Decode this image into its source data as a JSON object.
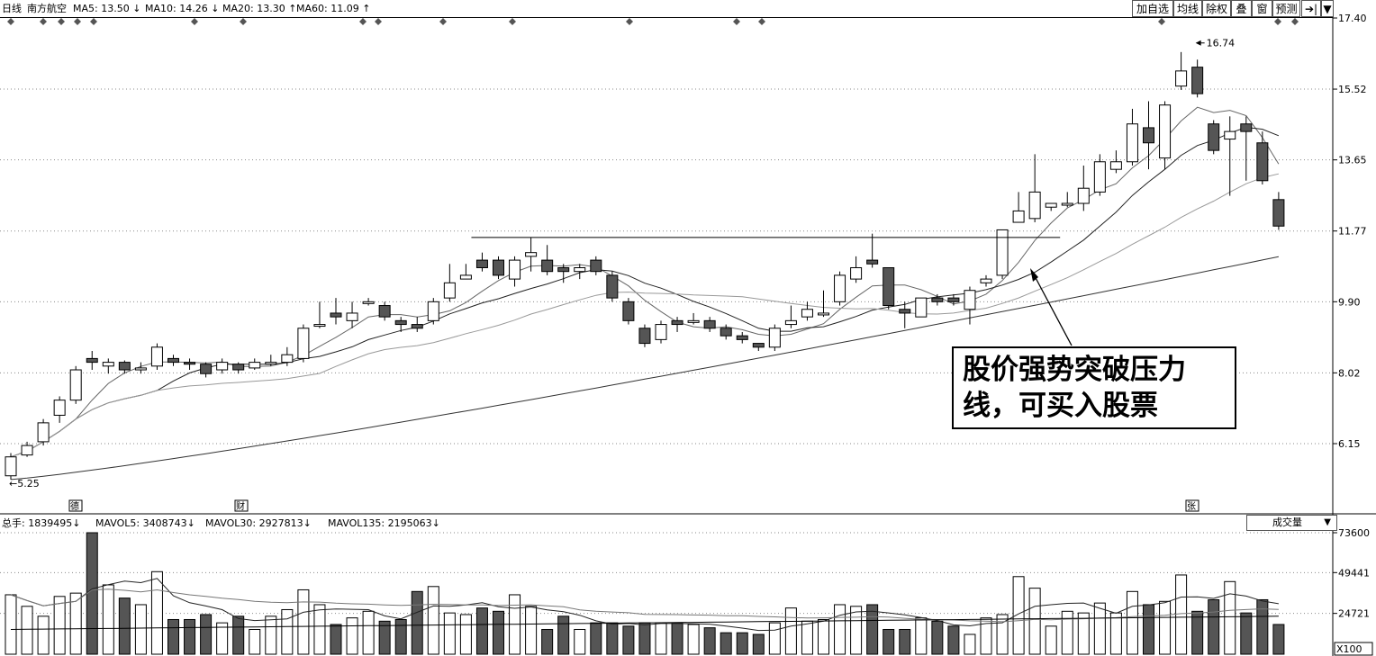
{
  "header": {
    "period": "日线",
    "stock": "南方航空",
    "ma": [
      {
        "label": "MA5: 13.50",
        "arrow": "↓"
      },
      {
        "label": "MA10: 14.26",
        "arrow": "↓"
      },
      {
        "label": "MA20: 13.30",
        "arrow": "↑"
      },
      {
        "label": "MA60: 11.09",
        "arrow": "↑"
      }
    ]
  },
  "toolbar": [
    "加自选",
    "均线",
    "除权",
    "叠",
    "窗",
    "预测",
    "➔|",
    "▼"
  ],
  "price_axis": [
    "17.40",
    "15.52",
    "13.65",
    "11.77",
    "9.90",
    "8.02",
    "6.15"
  ],
  "volume_axis": [
    "73600",
    "49441",
    "24721"
  ],
  "volume_unit": "X100",
  "volume_header": [
    {
      "label": "总手: 1839495",
      "arrow": "↓"
    },
    {
      "label": "MAVOL5: 3408743",
      "arrow": "↓"
    },
    {
      "label": "MAVOL30: 2927813",
      "arrow": "↓"
    },
    {
      "label": "MAVOL135: 2195063",
      "arrow": "↓"
    }
  ],
  "volume_select": "成交量",
  "markers": {
    "low": "5.25",
    "high": "16.74",
    "bottom_tags": [
      "德",
      "财",
      "张"
    ]
  },
  "annotation": "股价强势突破压力线，可买入股票",
  "colors": {
    "up": "#ffffff",
    "down": "#555555",
    "grid": "#8a8a8a",
    "text": "#000000"
  },
  "chart_data": {
    "type": "candlestick",
    "ylim": [
      4.5,
      17.6
    ],
    "candles": [
      [
        5.3,
        5.8,
        5.2,
        5.9
      ],
      [
        5.85,
        6.1,
        5.8,
        6.2
      ],
      [
        6.2,
        6.7,
        6.1,
        6.8
      ],
      [
        6.9,
        7.3,
        6.7,
        7.4
      ],
      [
        7.3,
        8.1,
        7.2,
        8.2
      ],
      [
        8.4,
        8.3,
        8.1,
        8.6
      ],
      [
        8.2,
        8.3,
        8.0,
        8.4
      ],
      [
        8.3,
        8.1,
        8.0,
        8.35
      ],
      [
        8.1,
        8.15,
        8.0,
        8.3
      ],
      [
        8.2,
        8.7,
        8.1,
        8.8
      ],
      [
        8.4,
        8.3,
        8.2,
        8.5
      ],
      [
        8.3,
        8.25,
        8.1,
        8.4
      ],
      [
        8.25,
        8.0,
        7.9,
        8.3
      ],
      [
        8.1,
        8.3,
        8.0,
        8.4
      ],
      [
        8.25,
        8.1,
        8.0,
        8.3
      ],
      [
        8.15,
        8.3,
        8.1,
        8.4
      ],
      [
        8.3,
        8.3,
        8.2,
        8.5
      ],
      [
        8.3,
        8.5,
        8.2,
        8.7
      ],
      [
        8.4,
        9.2,
        8.3,
        9.3
      ],
      [
        9.3,
        9.3,
        9.2,
        9.9
      ],
      [
        9.6,
        9.5,
        9.3,
        10.0
      ],
      [
        9.4,
        9.6,
        9.2,
        9.9
      ],
      [
        9.9,
        9.9,
        9.8,
        10.0
      ],
      [
        9.8,
        9.5,
        9.4,
        9.9
      ],
      [
        9.4,
        9.3,
        9.1,
        9.5
      ],
      [
        9.3,
        9.2,
        9.1,
        9.5
      ],
      [
        9.4,
        9.9,
        9.3,
        10.0
      ],
      [
        10.0,
        10.4,
        9.9,
        10.9
      ],
      [
        10.5,
        10.6,
        10.5,
        10.9
      ],
      [
        11.0,
        10.8,
        10.7,
        11.2
      ],
      [
        11.0,
        10.6,
        10.5,
        11.1
      ],
      [
        10.5,
        11.0,
        10.3,
        11.1
      ],
      [
        11.1,
        11.2,
        10.7,
        11.6
      ],
      [
        11.0,
        10.7,
        10.6,
        11.4
      ],
      [
        10.8,
        10.7,
        10.4,
        10.9
      ],
      [
        10.7,
        10.8,
        10.5,
        10.9
      ],
      [
        11.0,
        10.7,
        10.6,
        11.1
      ],
      [
        10.6,
        10.0,
        9.9,
        10.7
      ],
      [
        9.9,
        9.4,
        9.3,
        10.0
      ],
      [
        9.2,
        8.8,
        8.7,
        9.3
      ],
      [
        8.9,
        9.3,
        8.8,
        9.4
      ],
      [
        9.4,
        9.3,
        9.1,
        9.5
      ],
      [
        9.4,
        9.4,
        9.3,
        9.6
      ],
      [
        9.4,
        9.2,
        9.1,
        9.5
      ],
      [
        9.2,
        9.0,
        8.9,
        9.3
      ],
      [
        9.0,
        8.9,
        8.8,
        9.1
      ],
      [
        8.8,
        8.7,
        8.6,
        8.8
      ],
      [
        8.7,
        9.2,
        8.6,
        9.3
      ],
      [
        9.3,
        9.4,
        9.2,
        9.8
      ],
      [
        9.5,
        9.7,
        9.4,
        9.9
      ],
      [
        9.6,
        9.6,
        9.5,
        10.2
      ],
      [
        9.9,
        10.6,
        9.8,
        10.7
      ],
      [
        10.5,
        10.8,
        10.4,
        11.1
      ],
      [
        11.0,
        10.9,
        10.8,
        11.7
      ],
      [
        10.8,
        9.8,
        9.7,
        10.8
      ],
      [
        9.7,
        9.6,
        9.2,
        9.9
      ],
      [
        9.5,
        10.0,
        9.5,
        10.0
      ],
      [
        10.0,
        9.9,
        9.8,
        10.1
      ],
      [
        10.0,
        9.9,
        9.8,
        10.1
      ],
      [
        9.7,
        10.2,
        9.3,
        10.3
      ],
      [
        10.4,
        10.5,
        10.3,
        10.6
      ],
      [
        10.6,
        11.8,
        10.5,
        11.8
      ],
      [
        12.0,
        12.3,
        12.0,
        12.8
      ],
      [
        12.1,
        12.8,
        12.0,
        13.8
      ],
      [
        12.4,
        12.5,
        12.3,
        12.5
      ],
      [
        12.5,
        12.5,
        12.4,
        12.8
      ],
      [
        12.5,
        12.9,
        12.3,
        13.5
      ],
      [
        12.8,
        13.6,
        12.7,
        13.8
      ],
      [
        13.4,
        13.6,
        13.3,
        13.9
      ],
      [
        13.6,
        14.6,
        13.5,
        15.0
      ],
      [
        14.5,
        14.1,
        13.4,
        15.2
      ],
      [
        13.7,
        15.1,
        13.4,
        15.2
      ],
      [
        15.6,
        16.0,
        15.5,
        16.5
      ],
      [
        16.1,
        15.4,
        15.3,
        16.3
      ],
      [
        14.6,
        13.9,
        13.8,
        14.7
      ],
      [
        14.2,
        14.4,
        12.7,
        14.8
      ],
      [
        14.6,
        14.4,
        13.1,
        14.8
      ],
      [
        14.1,
        13.1,
        13.0,
        14.4
      ],
      [
        12.6,
        11.9,
        11.8,
        12.8
      ]
    ],
    "volumes": [
      36000,
      29000,
      23000,
      35000,
      37000,
      73600,
      42000,
      34000,
      30000,
      50000,
      21000,
      21000,
      24000,
      19000,
      23000,
      15000,
      23000,
      27000,
      39000,
      30000,
      18000,
      22000,
      26000,
      20000,
      21000,
      38000,
      41000,
      25000,
      24000,
      28000,
      26000,
      36000,
      29000,
      15000,
      23000,
      15000,
      19000,
      19000,
      17000,
      19000,
      19000,
      19000,
      18000,
      16000,
      13000,
      13000,
      12000,
      19000,
      28000,
      20000,
      21000,
      30000,
      29000,
      30000,
      15000,
      15000,
      22000,
      20000,
      17000,
      12000,
      22000,
      24000,
      47000,
      40000,
      17000,
      26000,
      25000,
      31000,
      25000,
      38000,
      30000,
      32000,
      48000,
      26000,
      33000,
      44000,
      25000,
      33000,
      18000
    ],
    "ma_levels_last": {
      "MA5": 13.5,
      "MA10": 14.26,
      "MA20": 13.3,
      "MA60": 11.09
    },
    "resistance_line": 11.6,
    "low": 5.25,
    "high": 16.74
  }
}
